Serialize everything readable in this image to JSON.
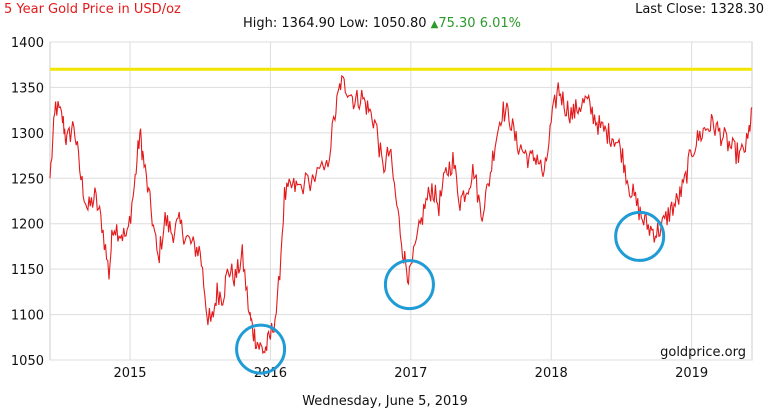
{
  "header": {
    "title": "5 Year Gold Price in USD/oz",
    "last_close_label": "Last Close:",
    "last_close_value": "1328.30",
    "high_label": "High:",
    "high_value": "1364.90",
    "low_label": "Low:",
    "low_value": "1050.80",
    "change_value": "75.30",
    "change_pct": "6.01%"
  },
  "footer": {
    "date": "Wednesday, June 5, 2019",
    "watermark": "goldprice.org"
  },
  "colors": {
    "line": "#e31a1c",
    "reference_line": "#f2e600",
    "circle": "#1f9bd6",
    "grid": "#dddddd",
    "change": "#2a9a2a"
  },
  "chart_data": {
    "type": "line",
    "title": "5 Year Gold Price in USD/oz",
    "xlabel": "",
    "ylabel": "",
    "xlim": [
      2014.43,
      2019.43
    ],
    "ylim": [
      1050,
      1400
    ],
    "x_ticks": [
      2015,
      2016,
      2017,
      2018,
      2019
    ],
    "x_tick_labels": [
      "2015",
      "2016",
      "2017",
      "2018",
      "2019"
    ],
    "y_ticks": [
      1050,
      1100,
      1150,
      1200,
      1250,
      1300,
      1350,
      1400
    ],
    "grid": true,
    "reference_line": 1370,
    "series": [
      {
        "x": [
          2014.43,
          2014.47,
          2014.52,
          2014.55,
          2014.6,
          2014.65,
          2014.7,
          2014.75,
          2014.8,
          2014.85,
          2014.88,
          2014.93,
          2014.98,
          2015.03,
          2015.07,
          2015.1,
          2015.15,
          2015.2,
          2015.25,
          2015.3,
          2015.35,
          2015.4,
          2015.45,
          2015.5,
          2015.55,
          2015.58,
          2015.62,
          2015.66,
          2015.7,
          2015.75,
          2015.8,
          2015.85,
          2015.88,
          2015.92,
          2015.96,
          2016.0,
          2016.05,
          2016.1,
          2016.15,
          2016.2,
          2016.3,
          2016.4,
          2016.46,
          2016.5,
          2016.55,
          2016.6,
          2016.65,
          2016.7,
          2016.75,
          2016.8,
          2016.85,
          2016.9,
          2016.95,
          2016.99,
          2017.05,
          2017.1,
          2017.15,
          2017.2,
          2017.25,
          2017.3,
          2017.35,
          2017.4,
          2017.45,
          2017.5,
          2017.55,
          2017.6,
          2017.65,
          2017.7,
          2017.75,
          2017.8,
          2017.85,
          2017.9,
          2017.95,
          2018.0,
          2018.05,
          2018.1,
          2018.15,
          2018.2,
          2018.25,
          2018.3,
          2018.35,
          2018.4,
          2018.45,
          2018.5,
          2018.55,
          2018.6,
          2018.65,
          2018.7,
          2018.75,
          2018.8,
          2018.85,
          2018.9,
          2018.95,
          2019.0,
          2019.05,
          2019.1,
          2019.15,
          2019.2,
          2019.25,
          2019.3,
          2019.35,
          2019.4,
          2019.43
        ],
        "y": [
          1250,
          1330,
          1315,
          1290,
          1310,
          1250,
          1215,
          1230,
          1200,
          1145,
          1200,
          1190,
          1185,
          1240,
          1300,
          1265,
          1215,
          1160,
          1205,
          1190,
          1200,
          1185,
          1175,
          1170,
          1100,
          1090,
          1125,
          1120,
          1150,
          1140,
          1165,
          1100,
          1080,
          1065,
          1060,
          1075,
          1110,
          1230,
          1240,
          1240,
          1250,
          1260,
          1320,
          1355,
          1350,
          1335,
          1340,
          1325,
          1310,
          1260,
          1280,
          1220,
          1165,
          1140,
          1185,
          1220,
          1240,
          1220,
          1255,
          1270,
          1225,
          1240,
          1260,
          1210,
          1240,
          1290,
          1325,
          1320,
          1290,
          1280,
          1270,
          1275,
          1250,
          1310,
          1350,
          1330,
          1320,
          1330,
          1335,
          1320,
          1305,
          1300,
          1295,
          1280,
          1245,
          1225,
          1205,
          1195,
          1190,
          1200,
          1215,
          1225,
          1245,
          1280,
          1295,
          1305,
          1310,
          1300,
          1290,
          1280,
          1275,
          1290,
          1328
        ]
      }
    ],
    "highlight_circles": [
      {
        "x": 2015.93,
        "y": 1062
      },
      {
        "x": 2016.99,
        "y": 1133
      },
      {
        "x": 2018.63,
        "y": 1186
      }
    ]
  }
}
